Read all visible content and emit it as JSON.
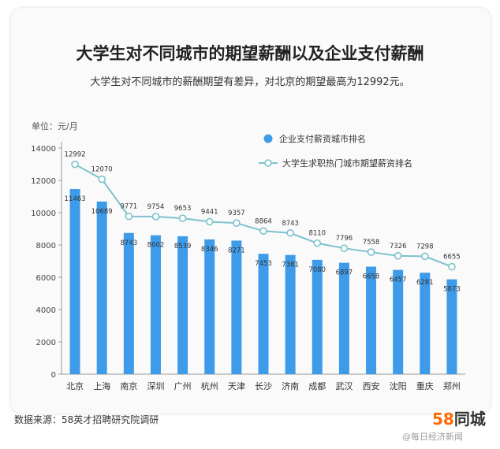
{
  "header": {
    "title": "大学生对不同城市的期望薪酬以及企业支付薪酬",
    "subtitle": "大学生对不同城市的薪酬期望有差异，对北京的期望最高为12992元。",
    "unit": "单位：元/月"
  },
  "footer": {
    "source": "数据来源：58英才招聘研究院调研",
    "logo_58": "58",
    "logo_text": "同城",
    "watermark": "@每日经济新闻"
  },
  "colors": {
    "bar": "#3d9be9",
    "line": "#7cc2cc",
    "marker_fill": "#ffffff",
    "axis": "#999999"
  },
  "chart_data": {
    "type": "bar",
    "categories": [
      "北京",
      "上海",
      "南京",
      "深圳",
      "广州",
      "杭州",
      "天津",
      "长沙",
      "济南",
      "成都",
      "武汉",
      "西安",
      "沈阳",
      "重庆",
      "郑州"
    ],
    "series": [
      {
        "name": "企业支付薪资城市排名",
        "type": "bar",
        "values": [
          11463,
          10689,
          8743,
          8602,
          8539,
          8346,
          8271,
          7453,
          7381,
          7080,
          6897,
          6658,
          6457,
          6281,
          5873
        ]
      },
      {
        "name": "大学生求职热门城市期望薪资排名",
        "type": "line",
        "values": [
          12992,
          12070,
          9771,
          9754,
          9653,
          9441,
          9357,
          8864,
          8743,
          8110,
          7796,
          7558,
          7326,
          7298,
          6655
        ]
      }
    ],
    "yticks": [
      0,
      2000,
      4000,
      6000,
      8000,
      10000,
      12000,
      14000
    ],
    "ylim": [
      0,
      14000
    ],
    "legend": "top-right",
    "grid": false
  }
}
